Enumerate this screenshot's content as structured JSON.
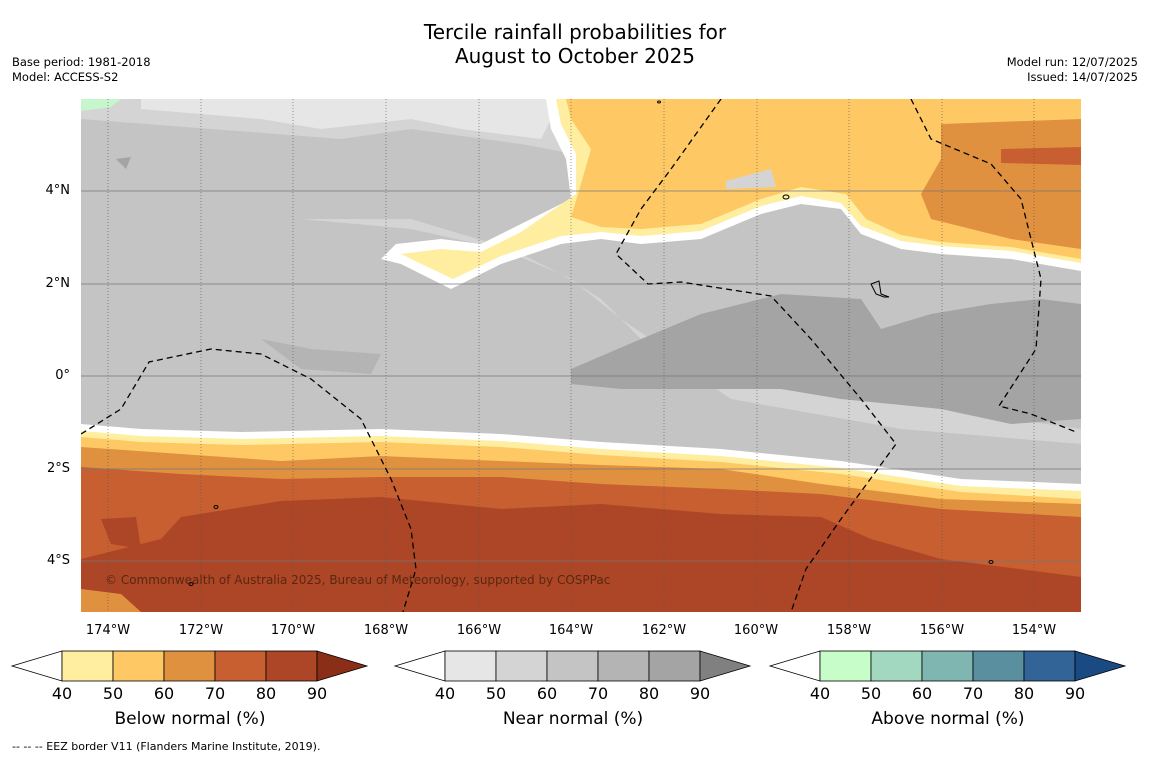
{
  "title": {
    "line1": "Tercile rainfall probabilities for",
    "line2": "August to October 2025"
  },
  "meta": {
    "base_period": "Base period: 1981-2018",
    "model": "Model: ACCESS-S2",
    "model_run": "Model run: 12/07/2025",
    "issued": "Issued: 14/07/2025"
  },
  "map": {
    "lat_labels": [
      "4°N",
      "2°N",
      "0°",
      "2°S",
      "4°S"
    ],
    "lon_labels": [
      "174°W",
      "172°W",
      "170°W",
      "168°W",
      "166°W",
      "164°W",
      "162°W",
      "160°W",
      "158°W",
      "156°W",
      "154°W"
    ],
    "copyright": "© Commonwealth of Australia 2025, Bureau of Meteorology, supported by COSPPac",
    "colors": {
      "near_base": "#c4c4c4",
      "below_50": "#ffeda0",
      "below_60": "#fec965",
      "below_70": "#e0913f",
      "below_80": "#c85f30",
      "below_90": "#ad4626",
      "above_40": "#c7f5cd"
    }
  },
  "colorbars": [
    {
      "title": "Below normal (%)",
      "ticks": [
        "40",
        "50",
        "60",
        "70",
        "80",
        "90"
      ],
      "colors": [
        "#ffffff",
        "#ffeda0",
        "#fec965",
        "#e0913f",
        "#c85f30",
        "#ad4626",
        "#8b2e18"
      ]
    },
    {
      "title": "Near normal (%)",
      "ticks": [
        "40",
        "50",
        "60",
        "70",
        "80",
        "90"
      ],
      "colors": [
        "#ffffff",
        "#e6e6e6",
        "#d4d4d4",
        "#c4c4c4",
        "#b4b4b4",
        "#a4a4a4",
        "#808080"
      ]
    },
    {
      "title": "Above normal (%)",
      "ticks": [
        "40",
        "50",
        "60",
        "70",
        "80",
        "90"
      ],
      "colors": [
        "#ffffff",
        "#c7fdc9",
        "#a2d8bf",
        "#80b6b2",
        "#5a8fa0",
        "#336497",
        "#1a4a82"
      ]
    }
  ],
  "footnote": "--  --  -- EEZ border V11 (Flanders Marine Institute, 2019)."
}
